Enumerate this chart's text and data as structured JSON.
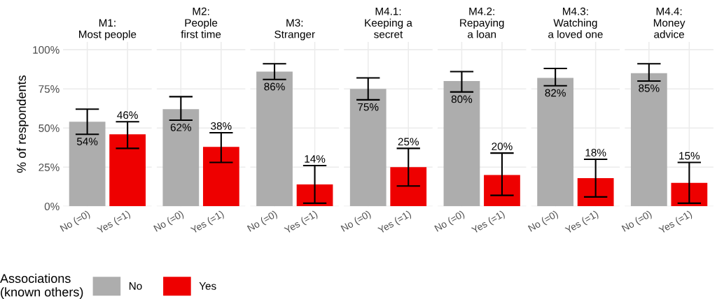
{
  "chart_data": [
    {
      "type": "bar",
      "title": "M1:\nMost people",
      "ylabel": "% of respondents",
      "categories": [
        "No (=0)",
        "Yes (=1)"
      ],
      "ylim": [
        0,
        105
      ],
      "yticks": [
        {
          "value": 0,
          "label": "0%"
        },
        {
          "value": 25,
          "label": "25%"
        },
        {
          "value": 50,
          "label": "50%"
        },
        {
          "value": 75,
          "label": "75%"
        },
        {
          "value": 100,
          "label": "100%"
        }
      ],
      "grid": true,
      "legend": "bottom",
      "legend_title": "Associations\n(known others)",
      "series": [
        {
          "name": "No",
          "color": "#adadad",
          "values": [
            54,
            null
          ],
          "errors": [
            [
              46,
              62
            ],
            null
          ],
          "value_labels": [
            "54%",
            null
          ]
        },
        {
          "name": "Yes",
          "color": "#ee0000",
          "values": [
            null,
            46
          ],
          "errors": [
            null,
            [
              37,
              54
            ]
          ],
          "value_labels": [
            null,
            "46%"
          ]
        }
      ]
    },
    {
      "type": "bar",
      "title": "M2:\nPeople\nfirst time",
      "categories": [
        "No (=0)",
        "Yes (=1)"
      ],
      "ylim": [
        0,
        105
      ],
      "yticks": [
        0,
        25,
        50,
        75,
        100
      ],
      "grid": true,
      "tick_labels": "x",
      "series": [
        {
          "color": "#adadad",
          "values": [
            62,
            null
          ],
          "errors": [
            [
              55,
              70
            ],
            null
          ],
          "value_labels": [
            "62%",
            null
          ]
        },
        {
          "color": "#ee0000",
          "values": [
            null,
            38
          ],
          "errors": [
            null,
            [
              28,
              47
            ]
          ],
          "value_labels": [
            null,
            "38%"
          ]
        }
      ]
    },
    {
      "type": "bar",
      "title": "M3:\nStranger",
      "categories": [
        "No (=0)",
        "Yes (=1)"
      ],
      "ylim": [
        0,
        105
      ],
      "yticks": [
        0,
        25,
        50,
        75,
        100
      ],
      "grid": true,
      "tick_labels": "x",
      "series": [
        {
          "color": "#adadad",
          "values": [
            86,
            null
          ],
          "errors": [
            [
              81,
              91
            ],
            null
          ],
          "value_labels": [
            "86%",
            null
          ]
        },
        {
          "color": "#ee0000",
          "values": [
            null,
            14
          ],
          "errors": [
            null,
            [
              2,
              26
            ]
          ],
          "value_labels": [
            null,
            "14%"
          ]
        }
      ]
    },
    {
      "type": "bar",
      "title": "M4.1:\nKeeping a\nsecret",
      "categories": [
        "No (=0)",
        "Yes (=1)"
      ],
      "ylim": [
        0,
        105
      ],
      "yticks": [
        0,
        25,
        50,
        75,
        100
      ],
      "grid": true,
      "tick_labels": "x",
      "series": [
        {
          "color": "#adadad",
          "values": [
            75,
            null
          ],
          "errors": [
            [
              68,
              82
            ],
            null
          ],
          "value_labels": [
            "75%",
            null
          ]
        },
        {
          "color": "#ee0000",
          "values": [
            null,
            25
          ],
          "errors": [
            null,
            [
              13,
              37
            ]
          ],
          "value_labels": [
            null,
            "25%"
          ]
        }
      ]
    },
    {
      "type": "bar",
      "title": "M4.2:\nRepaying\na loan",
      "categories": [
        "No (=0)",
        "Yes (=1)"
      ],
      "ylim": [
        0,
        105
      ],
      "yticks": [
        0,
        25,
        50,
        75,
        100
      ],
      "grid": true,
      "tick_labels": "x",
      "series": [
        {
          "color": "#adadad",
          "values": [
            80,
            null
          ],
          "errors": [
            [
              73,
              86
            ],
            null
          ],
          "value_labels": [
            "80%",
            null
          ]
        },
        {
          "color": "#ee0000",
          "values": [
            null,
            20
          ],
          "errors": [
            null,
            [
              7,
              34
            ]
          ],
          "value_labels": [
            null,
            "20%"
          ]
        }
      ]
    },
    {
      "type": "bar",
      "title": "M4.3:\nWatching\na loved one",
      "categories": [
        "No (=0)",
        "Yes (=1)"
      ],
      "ylim": [
        0,
        105
      ],
      "yticks": [
        0,
        25,
        50,
        75,
        100
      ],
      "grid": true,
      "tick_labels": "x",
      "series": [
        {
          "color": "#adadad",
          "values": [
            82,
            null
          ],
          "errors": [
            [
              77,
              88
            ],
            null
          ],
          "value_labels": [
            "82%",
            null
          ]
        },
        {
          "color": "#ee0000",
          "values": [
            null,
            18
          ],
          "errors": [
            null,
            [
              6,
              30
            ]
          ],
          "value_labels": [
            null,
            "18%"
          ]
        }
      ]
    },
    {
      "type": "bar",
      "title": "M4.4:\nMoney\nadvice",
      "categories": [
        "No (=0)",
        "Yes (=1)"
      ],
      "ylim": [
        0,
        105
      ],
      "yticks": [
        0,
        25,
        50,
        75,
        100
      ],
      "grid": true,
      "tick_labels": "x",
      "series": [
        {
          "color": "#adadad",
          "values": [
            85,
            null
          ],
          "errors": [
            [
              80,
              91
            ],
            null
          ],
          "value_labels": [
            "85%",
            null
          ]
        },
        {
          "color": "#ee0000",
          "values": [
            null,
            15
          ],
          "errors": [
            null,
            [
              2,
              28
            ]
          ],
          "value_labels": [
            null,
            "15%"
          ]
        }
      ]
    }
  ]
}
